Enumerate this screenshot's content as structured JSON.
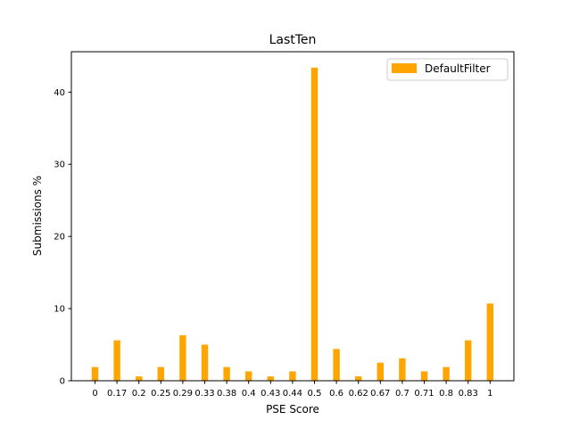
{
  "chart_data": {
    "type": "bar",
    "title": "LastTen",
    "xlabel": "PSE Score",
    "ylabel": "Submissions %",
    "categories": [
      "0",
      "0.17",
      "0.2",
      "0.25",
      "0.29",
      "0.33",
      "0.38",
      "0.4",
      "0.43",
      "0.44",
      "0.5",
      "0.6",
      "0.62",
      "0.67",
      "0.7",
      "0.71",
      "0.8",
      "0.83",
      "1"
    ],
    "series": [
      {
        "name": "DefaultFilter",
        "color": "#ffa500",
        "values": [
          1.9,
          5.6,
          0.6,
          1.9,
          6.3,
          5.0,
          1.9,
          1.3,
          0.6,
          1.3,
          43.4,
          4.4,
          0.6,
          2.5,
          3.1,
          1.3,
          1.9,
          5.6,
          10.7
        ]
      }
    ],
    "ylim": [
      0,
      45.6
    ],
    "yticks": [
      0,
      10,
      20,
      30,
      40
    ],
    "legend": "top-right",
    "grid": false
  }
}
